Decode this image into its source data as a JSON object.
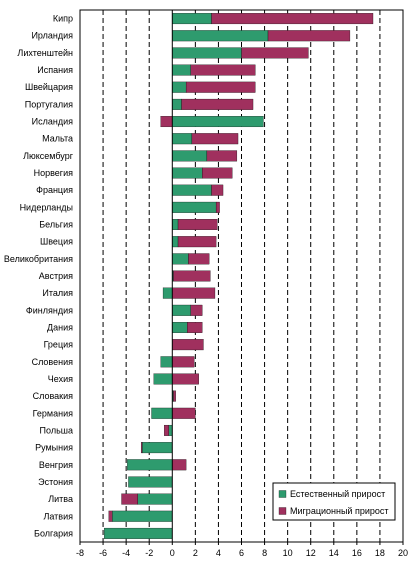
{
  "chart_data": {
    "type": "bar",
    "stacked": true,
    "orientation": "horizontal",
    "categories": [
      "Кипр",
      "Ирландия",
      "Лихтенштейн",
      "Испания",
      "Швейцария",
      "Португалия",
      "Исландия",
      "Мальта",
      "Люксембург",
      "Норвегия",
      "Франция",
      "Нидерланды",
      "Бельгия",
      "Швеция",
      "Великобритания",
      "Австрия",
      "Италия",
      "Финляндия",
      "Дания",
      "Греция",
      "Словения",
      "Чехия",
      "Словакия",
      "Германия",
      "Польша",
      "Румыния",
      "Венгрия",
      "Эстония",
      "Литва",
      "Латвия",
      "Болгария"
    ],
    "series": [
      {
        "name": "Естественный прирост",
        "color": "#2e9b6e",
        "values": [
          3.4,
          8.3,
          6.0,
          1.6,
          1.2,
          0.8,
          7.9,
          1.7,
          3.0,
          2.6,
          3.4,
          3.8,
          0.5,
          0.5,
          1.4,
          0.1,
          -0.8,
          1.6,
          1.3,
          0.0,
          -1.0,
          -1.6,
          0.1,
          -1.8,
          -0.3,
          -2.6,
          -3.9,
          -3.8,
          -3.0,
          -5.2,
          -5.9
        ]
      },
      {
        "name": "Миграционный прирост",
        "color": "#a0305e",
        "values": [
          14.0,
          7.1,
          5.8,
          5.6,
          6.0,
          6.2,
          -1.0,
          4.0,
          2.6,
          2.6,
          1.0,
          0.3,
          3.4,
          3.3,
          1.8,
          3.2,
          3.7,
          1.0,
          1.3,
          2.7,
          1.9,
          2.3,
          0.2,
          2.0,
          -0.4,
          -0.1,
          1.2,
          0.0,
          -1.4,
          -0.3,
          0.0
        ]
      }
    ],
    "xlim": [
      -8,
      20
    ],
    "xticks": [
      "-8",
      "-6",
      "-4",
      "-2",
      "0",
      "2",
      "4",
      "6",
      "8",
      "10",
      "12",
      "14",
      "16",
      "18",
      "20"
    ],
    "grid": "vertical-dashed",
    "legend_position": "bottom-right"
  }
}
